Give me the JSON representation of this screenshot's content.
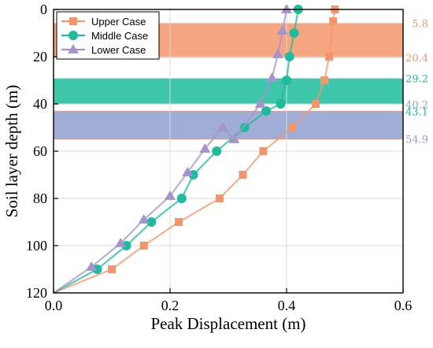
{
  "chart_data": {
    "type": "line",
    "xlabel": "Peak Displacement (m)",
    "ylabel": "Soil layer depth (m)",
    "xlim": [
      0.0,
      0.6
    ],
    "ylim": [
      0,
      120
    ],
    "y_inverted": true,
    "x_ticks": [
      "0.0",
      "0.2",
      "0.4",
      "0.6"
    ],
    "y_ticks": [
      "0",
      "20",
      "40",
      "60",
      "80",
      "100",
      "120"
    ],
    "grid": true,
    "legend_position": "top-left",
    "series": [
      {
        "name": "Upper Case",
        "color": "#f4956b",
        "marker": "square",
        "x": [
          0.0,
          0.1,
          0.155,
          0.215,
          0.285,
          0.325,
          0.36,
          0.41,
          0.45,
          0.465,
          0.473,
          0.48,
          0.483
        ],
        "y": [
          120,
          110,
          100,
          90,
          80,
          70,
          60,
          50,
          40,
          30,
          20,
          5,
          0
        ]
      },
      {
        "name": "Middle Case",
        "color": "#1cbc9c",
        "marker": "circle",
        "x": [
          0.0,
          0.075,
          0.125,
          0.168,
          0.22,
          0.24,
          0.28,
          0.328,
          0.365,
          0.39,
          0.4,
          0.405,
          0.413,
          0.42
        ],
        "y": [
          120,
          110,
          100,
          90,
          80,
          70,
          60,
          50,
          43,
          40,
          30,
          20,
          10,
          0
        ]
      },
      {
        "name": "Lower Case",
        "color": "#a593cc",
        "marker": "triangle",
        "x": [
          0.0,
          0.065,
          0.115,
          0.155,
          0.2,
          0.23,
          0.26,
          0.29,
          0.31,
          0.355,
          0.375,
          0.385,
          0.393,
          0.4
        ],
        "y": [
          120,
          109,
          99,
          89,
          79,
          69,
          59,
          50,
          55,
          40,
          29,
          19,
          9,
          0
        ]
      }
    ],
    "bands": [
      {
        "from": 5.8,
        "to": 20.4,
        "color": "#f4956b",
        "labels": [
          "5.8",
          "20.4"
        ],
        "label_colors": [
          "#f4956b",
          "#f4956b"
        ]
      },
      {
        "from": 29.2,
        "to": 40.2,
        "color": "#1cbc9c",
        "labels": [
          "29.2"
        ],
        "label_colors": [
          "#1cbc9c"
        ]
      },
      {
        "from": 43.1,
        "to": 54.9,
        "color": "#8e9fd0",
        "border": "#f4956b",
        "labels": [
          "40.2",
          "43.1",
          "54.9"
        ],
        "label_colors": [
          "#8e9fd0",
          "#1cbc9c",
          "#8e9fd0"
        ],
        "label_values": [
          40.2,
          43.1,
          54.9
        ]
      }
    ]
  }
}
